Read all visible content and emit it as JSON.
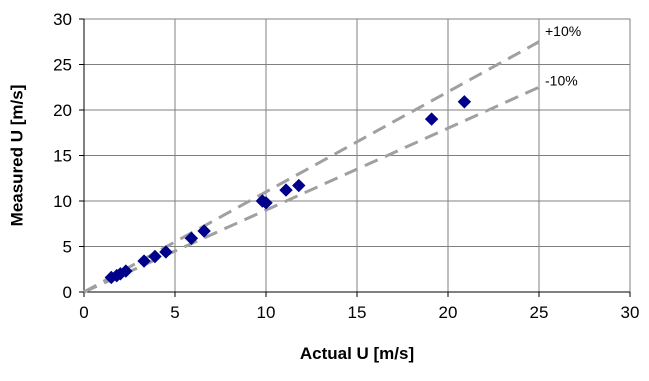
{
  "chart_data": {
    "type": "scatter",
    "xlabel": "Actual U [m/s]",
    "ylabel": "Measured U [m/s]",
    "xlim": [
      0,
      30
    ],
    "ylim": [
      0,
      30
    ],
    "xticks": [
      "0",
      "5",
      "10",
      "15",
      "20",
      "25",
      "30"
    ],
    "yticks": [
      "0",
      "5",
      "10",
      "15",
      "20",
      "25",
      "30"
    ],
    "grid": true,
    "colors": {
      "points": "#00008B",
      "reference_lines": "#A0A0A0",
      "grid": "#808080"
    },
    "series": [
      {
        "marker": "diamond",
        "points": [
          {
            "x": 1.5,
            "y": 1.6
          },
          {
            "x": 1.8,
            "y": 1.8
          },
          {
            "x": 2.0,
            "y": 2.0
          },
          {
            "x": 2.3,
            "y": 2.3
          },
          {
            "x": 3.3,
            "y": 3.4
          },
          {
            "x": 3.9,
            "y": 3.9
          },
          {
            "x": 4.5,
            "y": 4.4
          },
          {
            "x": 5.9,
            "y": 5.9
          },
          {
            "x": 6.6,
            "y": 6.7
          },
          {
            "x": 9.8,
            "y": 10.0
          },
          {
            "x": 10.0,
            "y": 9.8
          },
          {
            "x": 11.1,
            "y": 11.2
          },
          {
            "x": 11.8,
            "y": 11.7
          },
          {
            "x": 19.1,
            "y": 19.0
          },
          {
            "x": 20.9,
            "y": 20.9
          }
        ]
      }
    ],
    "reference_lines": [
      {
        "label": "+10%",
        "slope": 1.1,
        "x_range": [
          0,
          25
        ],
        "style": "dashed"
      },
      {
        "label": "-10%",
        "slope": 0.9,
        "x_range": [
          0,
          25
        ],
        "style": "dashed"
      }
    ]
  }
}
